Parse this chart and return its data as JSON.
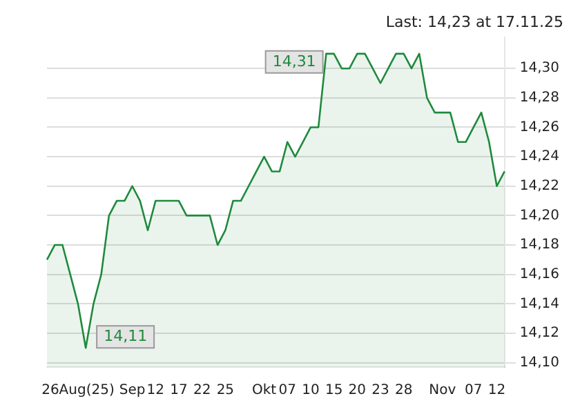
{
  "chart_data": {
    "type": "area",
    "title": "Last: 14,23 at 17.11.25",
    "categories": [
      null,
      null,
      null,
      null,
      "26Aug(25)",
      null,
      null,
      null,
      null,
      null,
      null,
      "Sep",
      null,
      null,
      "12",
      null,
      null,
      "17",
      null,
      null,
      "22",
      null,
      null,
      "25",
      null,
      null,
      null,
      null,
      "Okt",
      null,
      null,
      "07",
      null,
      null,
      "10",
      null,
      null,
      "15",
      null,
      null,
      "20",
      null,
      null,
      "23",
      null,
      null,
      "28",
      null,
      null,
      null,
      null,
      "Nov",
      null,
      null,
      null,
      "07",
      null,
      null,
      "12",
      null
    ],
    "series": [
      {
        "color": "#1e8a3c",
        "values": [
          14.17,
          14.18,
          14.18,
          14.16,
          14.14,
          14.11,
          14.14,
          14.16,
          14.2,
          14.21,
          14.21,
          14.22,
          14.21,
          14.19,
          14.21,
          14.21,
          14.21,
          14.21,
          14.2,
          14.2,
          14.2,
          14.2,
          14.18,
          14.19,
          14.21,
          14.21,
          14.22,
          14.23,
          14.24,
          14.23,
          14.23,
          14.25,
          14.24,
          14.25,
          14.26,
          14.26,
          14.31,
          14.31,
          14.3,
          14.3,
          14.31,
          14.31,
          14.3,
          14.29,
          14.3,
          14.31,
          14.31,
          14.3,
          14.31,
          14.28,
          14.27,
          14.27,
          14.27,
          14.25,
          14.25,
          14.26,
          14.27,
          14.25,
          14.22,
          14.23
        ]
      }
    ],
    "ylim": [
      14.097,
      14.321
    ],
    "yticks": [
      {
        "value": 14.1,
        "label": "14,10"
      },
      {
        "value": 14.12,
        "label": "14,12"
      },
      {
        "value": 14.14,
        "label": "14,14"
      },
      {
        "value": 14.16,
        "label": "14,16"
      },
      {
        "value": 14.18,
        "label": "14,18"
      },
      {
        "value": 14.2,
        "label": "14,20"
      },
      {
        "value": 14.22,
        "label": "14,22"
      },
      {
        "value": 14.24,
        "label": "14,24"
      },
      {
        "value": 14.26,
        "label": "14,26"
      },
      {
        "value": 14.28,
        "label": "14,28"
      },
      {
        "value": 14.3,
        "label": "14,30"
      }
    ],
    "grid": "y",
    "annotations": [
      {
        "text": "14,31",
        "x": "15",
        "y": 14.31
      },
      "14,11"
    ]
  }
}
